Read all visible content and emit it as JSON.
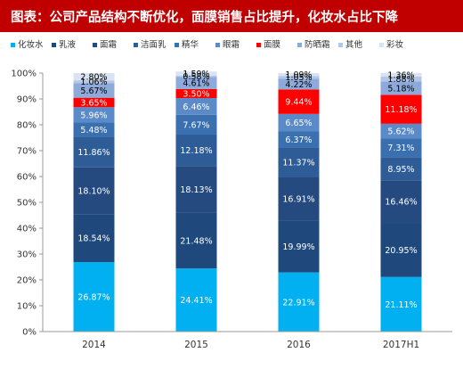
{
  "header": {
    "title": "图表：公司产品结构不断优化，面膜销售占比提升，化妆水占比下降"
  },
  "chart_data": {
    "type": "bar",
    "stacked": true,
    "title": "图表：公司产品结构不断优化，面膜销售占比提升，化妆水占比下降",
    "categories": [
      "2014",
      "2015",
      "2016",
      "2017H1"
    ],
    "ylim": [
      0,
      100
    ],
    "yticks": [
      "0%",
      "10%",
      "20%",
      "30%",
      "40%",
      "50%",
      "60%",
      "70%",
      "80%",
      "90%",
      "100%"
    ],
    "grid": false,
    "legend_position": "top",
    "series": [
      {
        "name": "化妆水",
        "color": "#00b0f0",
        "values": [
          26.87,
          24.41,
          22.91,
          21.11
        ],
        "labels": [
          "26.87%",
          "24.41%",
          "22.91%",
          "21.11%"
        ]
      },
      {
        "name": "乳液",
        "color": "#1f497d",
        "values": [
          18.54,
          21.48,
          19.99,
          20.95
        ],
        "labels": [
          "18.54%",
          "21.48%",
          "19.99%",
          "20.95%"
        ]
      },
      {
        "name": "面霜",
        "color": "#254a80",
        "values": [
          18.1,
          18.13,
          16.91,
          16.46
        ],
        "labels": [
          "18.10%",
          "18.13%",
          "16.91%",
          "16.46%"
        ]
      },
      {
        "name": "洁面乳",
        "color": "#2e5c97",
        "values": [
          11.86,
          12.18,
          11.37,
          8.95
        ],
        "labels": [
          "11.86%",
          "12.18%",
          "11.37%",
          "8.95%"
        ]
      },
      {
        "name": "精华",
        "color": "#3a6fb0",
        "values": [
          5.48,
          7.67,
          6.37,
          7.31
        ],
        "labels": [
          "5.48%",
          "7.67%",
          "6.37%",
          "7.31%"
        ]
      },
      {
        "name": "眼霜",
        "color": "#5b8ac8",
        "values": [
          5.96,
          6.46,
          6.65,
          5.62
        ],
        "labels": [
          "5.96%",
          "6.46%",
          "6.65%",
          "5.62%"
        ]
      },
      {
        "name": "面膜",
        "color": "#ff0000",
        "values": [
          3.65,
          3.5,
          9.44,
          11.18
        ],
        "labels": [
          "3.65%",
          "3.50%",
          "9.44%",
          "11.18%"
        ]
      },
      {
        "name": "防晒霜",
        "color": "#8eaadb",
        "values": [
          5.67,
          4.61,
          4.22,
          5.18
        ],
        "labels": [
          "5.67%",
          "4.61%",
          "4.22%",
          "5.18%"
        ]
      },
      {
        "name": "其他",
        "color": "#b4c7e7",
        "values": [
          1.06,
          0.58,
          1.05,
          1.88
        ],
        "labels": [
          "1.06%",
          "0.58%",
          "1.05%",
          "1.88%"
        ]
      },
      {
        "name": "彩妆",
        "color": "#dae3f3",
        "values": [
          2.8,
          1.59,
          1.09,
          1.36
        ],
        "labels": [
          "2.80%",
          "1.59%",
          "1.09%",
          "1.36%"
        ]
      }
    ]
  }
}
